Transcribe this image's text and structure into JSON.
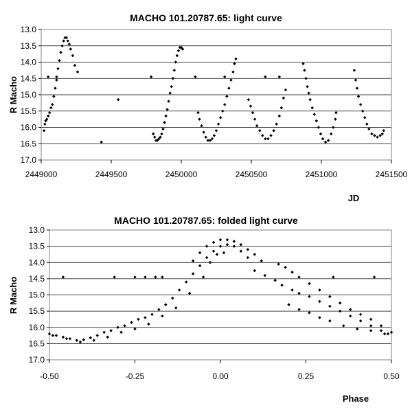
{
  "chart_data": [
    {
      "type": "scatter",
      "title": "MACHO 101.20787.65: light curve",
      "xlabel": "JD",
      "ylabel": "R Macho",
      "xlim": [
        2449000,
        2451500
      ],
      "ylim": [
        13.0,
        17.0
      ],
      "y_inverted": true,
      "grid": "horizontal",
      "legend": "none",
      "x_ticks": [
        "2449000",
        "2449500",
        "2450000",
        "2450500",
        "2451000",
        "2451500"
      ],
      "y_ticks": [
        "13.0",
        "13.5",
        "14.0",
        "14.5",
        "15.0",
        "15.5",
        "16.0",
        "16.5",
        "17.0"
      ],
      "marker_color": "#000000",
      "series": [
        {
          "points": [
            [
              2449020,
              16.1
            ],
            [
              2449026,
              15.9
            ],
            [
              2449032,
              15.8
            ],
            [
              2449040,
              15.75
            ],
            [
              2449050,
              15.65
            ],
            [
              2449060,
              15.55
            ],
            [
              2449070,
              15.4
            ],
            [
              2449080,
              15.3
            ],
            [
              2449090,
              15.05
            ],
            [
              2449100,
              14.8
            ],
            [
              2449110,
              14.55
            ],
            [
              2449120,
              14.2
            ],
            [
              2449130,
              13.95
            ],
            [
              2449140,
              13.7
            ],
            [
              2449150,
              13.5
            ],
            [
              2449160,
              13.35
            ],
            [
              2449170,
              13.25
            ],
            [
              2449180,
              13.25
            ],
            [
              2449190,
              13.35
            ],
            [
              2449200,
              13.45
            ],
            [
              2449210,
              13.6
            ],
            [
              2449225,
              13.8
            ],
            [
              2449240,
              14.1
            ],
            [
              2449260,
              14.3
            ],
            [
              2449050,
              14.45
            ],
            [
              2449110,
              14.45
            ],
            [
              2449430,
              16.45
            ],
            [
              2449550,
              15.15
            ],
            [
              2449785,
              14.45
            ],
            [
              2449800,
              16.2
            ],
            [
              2449810,
              16.3
            ],
            [
              2449820,
              16.4
            ],
            [
              2449830,
              16.4
            ],
            [
              2449840,
              16.35
            ],
            [
              2449850,
              16.3
            ],
            [
              2449860,
              16.2
            ],
            [
              2449870,
              16.05
            ],
            [
              2449880,
              15.85
            ],
            [
              2449890,
              15.65
            ],
            [
              2449900,
              15.45
            ],
            [
              2449910,
              15.2
            ],
            [
              2449920,
              14.95
            ],
            [
              2449930,
              14.75
            ],
            [
              2449940,
              14.5
            ],
            [
              2449950,
              14.25
            ],
            [
              2449960,
              14.0
            ],
            [
              2449970,
              13.8
            ],
            [
              2449980,
              13.65
            ],
            [
              2449990,
              13.55
            ],
            [
              2450000,
              13.55
            ],
            [
              2450010,
              13.6
            ],
            [
              2450100,
              14.45
            ],
            [
              2450120,
              15.55
            ],
            [
              2450130,
              15.75
            ],
            [
              2450145,
              15.95
            ],
            [
              2450160,
              16.15
            ],
            [
              2450175,
              16.3
            ],
            [
              2450190,
              16.4
            ],
            [
              2450205,
              16.4
            ],
            [
              2450220,
              16.35
            ],
            [
              2450235,
              16.25
            ],
            [
              2450250,
              16.1
            ],
            [
              2450265,
              15.9
            ],
            [
              2450280,
              15.7
            ],
            [
              2450295,
              15.5
            ],
            [
              2450310,
              15.3
            ],
            [
              2450325,
              15.05
            ],
            [
              2450340,
              14.8
            ],
            [
              2450355,
              14.55
            ],
            [
              2450370,
              14.3
            ],
            [
              2450380,
              14.05
            ],
            [
              2450390,
              13.9
            ],
            [
              2450310,
              14.45
            ],
            [
              2450480,
              15.15
            ],
            [
              2450495,
              15.35
            ],
            [
              2450510,
              15.55
            ],
            [
              2450525,
              15.75
            ],
            [
              2450540,
              15.95
            ],
            [
              2450560,
              16.1
            ],
            [
              2450580,
              16.25
            ],
            [
              2450600,
              16.35
            ],
            [
              2450620,
              16.35
            ],
            [
              2450640,
              16.25
            ],
            [
              2450660,
              16.1
            ],
            [
              2450680,
              15.9
            ],
            [
              2450700,
              15.65
            ],
            [
              2450715,
              15.4
            ],
            [
              2450730,
              15.1
            ],
            [
              2450745,
              14.85
            ],
            [
              2450600,
              14.45
            ],
            [
              2450700,
              14.45
            ],
            [
              2450870,
              14.05
            ],
            [
              2450880,
              14.25
            ],
            [
              2450890,
              14.5
            ],
            [
              2450900,
              14.75
            ],
            [
              2450910,
              14.95
            ],
            [
              2450920,
              15.15
            ],
            [
              2450935,
              15.4
            ],
            [
              2450950,
              15.6
            ],
            [
              2450965,
              15.8
            ],
            [
              2450980,
              16.0
            ],
            [
              2450995,
              16.2
            ],
            [
              2451010,
              16.35
            ],
            [
              2451030,
              16.45
            ],
            [
              2451050,
              16.4
            ],
            [
              2451070,
              16.2
            ],
            [
              2451085,
              16.0
            ],
            [
              2451100,
              15.75
            ],
            [
              2451105,
              15.55
            ],
            [
              2451235,
              14.25
            ],
            [
              2451245,
              14.55
            ],
            [
              2451255,
              14.8
            ],
            [
              2451265,
              15.05
            ],
            [
              2451280,
              15.3
            ],
            [
              2451295,
              15.5
            ],
            [
              2451310,
              15.7
            ],
            [
              2451325,
              15.9
            ],
            [
              2451340,
              16.05
            ],
            [
              2451360,
              16.2
            ],
            [
              2451380,
              16.25
            ],
            [
              2451400,
              16.3
            ],
            [
              2451420,
              16.25
            ],
            [
              2451435,
              16.2
            ],
            [
              2451445,
              16.1
            ]
          ]
        }
      ]
    },
    {
      "type": "scatter",
      "title": "MACHO 101.20787.65: folded light curve",
      "xlabel": "Phase",
      "ylabel": "R Macho",
      "xlim": [
        -0.5,
        0.5
      ],
      "ylim": [
        13.0,
        17.0
      ],
      "y_inverted": true,
      "grid": "horizontal",
      "legend": "none",
      "x_ticks": [
        "-0.50",
        "-0.25",
        "0.00",
        "0.25",
        "0.50"
      ],
      "y_ticks": [
        "13.0",
        "13.5",
        "14.0",
        "14.5",
        "15.0",
        "15.5",
        "16.0",
        "16.5",
        "17.0"
      ],
      "marker_color": "#000000",
      "series": [
        {
          "points": [
            [
              -0.5,
              16.2
            ],
            [
              -0.48,
              16.25
            ],
            [
              -0.46,
              16.3
            ],
            [
              -0.44,
              16.35
            ],
            [
              -0.42,
              16.4
            ],
            [
              -0.4,
              16.38
            ],
            [
              -0.38,
              16.32
            ],
            [
              -0.36,
              16.25
            ],
            [
              -0.34,
              16.15
            ],
            [
              -0.32,
              16.1
            ],
            [
              -0.3,
              16.0
            ],
            [
              -0.28,
              15.95
            ],
            [
              -0.26,
              15.85
            ],
            [
              -0.24,
              15.75
            ],
            [
              -0.22,
              15.7
            ],
            [
              -0.2,
              15.6
            ],
            [
              -0.18,
              15.45
            ],
            [
              -0.16,
              15.3
            ],
            [
              -0.14,
              15.1
            ],
            [
              -0.12,
              14.85
            ],
            [
              -0.1,
              14.6
            ],
            [
              -0.08,
              14.35
            ],
            [
              -0.06,
              14.1
            ],
            [
              -0.04,
              13.85
            ],
            [
              -0.02,
              13.65
            ],
            [
              0.0,
              13.5
            ],
            [
              0.02,
              13.45
            ],
            [
              0.04,
              13.5
            ],
            [
              0.06,
              13.65
            ],
            [
              0.08,
              13.85
            ],
            [
              -0.49,
              16.25
            ],
            [
              -0.45,
              16.35
            ],
            [
              -0.41,
              16.45
            ],
            [
              -0.37,
              16.4
            ],
            [
              -0.33,
              16.3
            ],
            [
              -0.29,
              16.15
            ],
            [
              -0.25,
              16.05
            ],
            [
              -0.21,
              15.9
            ],
            [
              -0.17,
              15.65
            ],
            [
              -0.13,
              15.4
            ],
            [
              -0.09,
              14.95
            ],
            [
              -0.05,
              14.45
            ],
            [
              -0.03,
              14.0
            ],
            [
              -0.01,
              13.75
            ],
            [
              0.01,
              13.7
            ],
            [
              -0.08,
              13.95
            ],
            [
              -0.06,
              13.7
            ],
            [
              -0.04,
              13.5
            ],
            [
              -0.02,
              13.38
            ],
            [
              0.0,
              13.3
            ],
            [
              0.02,
              13.3
            ],
            [
              0.04,
              13.35
            ],
            [
              0.06,
              13.45
            ],
            [
              0.08,
              13.6
            ],
            [
              0.1,
              13.75
            ],
            [
              0.12,
              13.95
            ],
            [
              0.1,
              14.25
            ],
            [
              0.13,
              14.4
            ],
            [
              0.16,
              14.55
            ],
            [
              0.18,
              14.7
            ],
            [
              0.21,
              14.85
            ],
            [
              0.23,
              14.95
            ],
            [
              0.26,
              15.05
            ],
            [
              0.29,
              15.2
            ],
            [
              0.32,
              15.35
            ],
            [
              0.35,
              15.5
            ],
            [
              0.38,
              15.65
            ],
            [
              0.41,
              15.8
            ],
            [
              0.44,
              15.95
            ],
            [
              0.47,
              16.1
            ],
            [
              0.49,
              16.2
            ],
            [
              0.17,
              14.05
            ],
            [
              0.19,
              14.15
            ],
            [
              0.21,
              14.3
            ],
            [
              0.23,
              14.45
            ],
            [
              0.26,
              14.65
            ],
            [
              0.29,
              14.85
            ],
            [
              0.32,
              15.05
            ],
            [
              0.35,
              15.25
            ],
            [
              0.38,
              15.45
            ],
            [
              0.41,
              15.6
            ],
            [
              0.44,
              15.75
            ],
            [
              0.47,
              15.95
            ],
            [
              0.5,
              16.15
            ],
            [
              0.2,
              15.3
            ],
            [
              0.23,
              15.45
            ],
            [
              0.26,
              15.55
            ],
            [
              0.29,
              15.7
            ],
            [
              0.32,
              15.8
            ],
            [
              0.36,
              15.95
            ],
            [
              0.4,
              16.05
            ],
            [
              0.44,
              16.1
            ],
            [
              0.48,
              16.2
            ],
            [
              -0.46,
              14.45
            ],
            [
              -0.31,
              14.45
            ],
            [
              -0.25,
              14.45
            ],
            [
              -0.22,
              14.45
            ],
            [
              -0.19,
              14.45
            ],
            [
              -0.17,
              14.45
            ],
            [
              0.33,
              14.45
            ],
            [
              0.45,
              14.45
            ]
          ]
        }
      ]
    }
  ]
}
